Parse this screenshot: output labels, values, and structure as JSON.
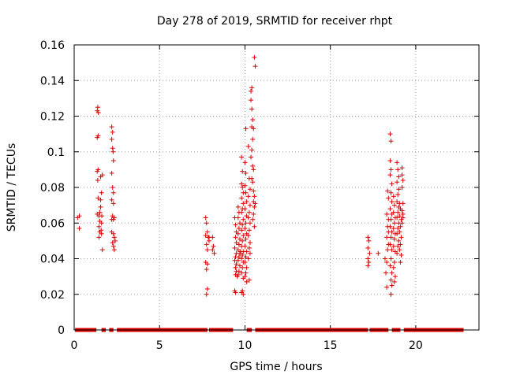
{
  "chart_data": {
    "type": "scatter",
    "title": "Day 278 of 2019, SRMTID for receiver rhpt",
    "xlabel": "GPS time / hours",
    "ylabel": "SRMTID / TECUs",
    "xlim": [
      0,
      23.7
    ],
    "ylim": [
      0,
      0.16
    ],
    "xticks": [
      0,
      5,
      10,
      15,
      20
    ],
    "xtick_labels": [
      "0",
      "5",
      "10",
      "15",
      "20"
    ],
    "yticks": [
      0,
      0.02,
      0.04,
      0.06,
      0.08,
      0.1,
      0.12,
      0.14,
      0.16
    ],
    "ytick_labels": [
      "0",
      "0.02",
      "0.04",
      "0.06",
      "0.08",
      "0.1",
      "0.12",
      "0.14",
      "0.16"
    ],
    "grid": true,
    "marker": "+",
    "color": "#dd0000",
    "series": [
      {
        "name": "SRMTID",
        "zero_segments": [
          [
            0.05,
            1.3
          ],
          [
            1.6,
            1.85
          ],
          [
            2.05,
            2.3
          ],
          [
            2.5,
            7.8
          ],
          [
            7.9,
            9.3
          ],
          [
            10.1,
            10.4
          ],
          [
            10.6,
            17.2
          ],
          [
            17.3,
            18.4
          ],
          [
            18.6,
            19.1
          ],
          [
            19.3,
            22.8
          ]
        ],
        "points": [
          [
            0.2,
            0.063
          ],
          [
            0.3,
            0.064
          ],
          [
            0.3,
            0.057
          ],
          [
            1.35,
            0.123
          ],
          [
            1.38,
            0.125
          ],
          [
            1.42,
            0.122
          ],
          [
            1.35,
            0.108
          ],
          [
            1.4,
            0.109
          ],
          [
            1.35,
            0.089
          ],
          [
            1.4,
            0.09
          ],
          [
            1.38,
            0.084
          ],
          [
            1.4,
            0.074
          ],
          [
            1.45,
            0.064
          ],
          [
            1.35,
            0.065
          ],
          [
            1.5,
            0.066
          ],
          [
            1.45,
            0.058
          ],
          [
            1.5,
            0.055
          ],
          [
            1.45,
            0.052
          ],
          [
            1.5,
            0.061
          ],
          [
            1.55,
            0.086
          ],
          [
            1.6,
            0.077
          ],
          [
            1.55,
            0.073
          ],
          [
            1.6,
            0.06
          ],
          [
            1.6,
            0.054
          ],
          [
            1.65,
            0.045
          ],
          [
            1.58,
            0.056
          ],
          [
            1.62,
            0.064
          ],
          [
            1.55,
            0.069
          ],
          [
            1.65,
            0.087
          ],
          [
            2.2,
            0.114
          ],
          [
            2.25,
            0.111
          ],
          [
            2.2,
            0.107
          ],
          [
            2.25,
            0.102
          ],
          [
            2.28,
            0.1
          ],
          [
            2.3,
            0.095
          ],
          [
            2.2,
            0.088
          ],
          [
            2.25,
            0.08
          ],
          [
            2.3,
            0.077
          ],
          [
            2.2,
            0.073
          ],
          [
            2.3,
            0.071
          ],
          [
            2.25,
            0.064
          ],
          [
            2.3,
            0.062
          ],
          [
            2.35,
            0.063
          ],
          [
            2.2,
            0.055
          ],
          [
            2.3,
            0.054
          ],
          [
            2.35,
            0.052
          ],
          [
            2.25,
            0.049
          ],
          [
            2.3,
            0.047
          ],
          [
            2.35,
            0.045
          ],
          [
            2.2,
            0.062
          ],
          [
            2.4,
            0.05
          ],
          [
            7.7,
            0.063
          ],
          [
            7.75,
            0.06
          ],
          [
            7.8,
            0.055
          ],
          [
            7.7,
            0.053
          ],
          [
            7.85,
            0.052
          ],
          [
            7.9,
            0.052
          ],
          [
            7.75,
            0.048
          ],
          [
            7.8,
            0.045
          ],
          [
            7.7,
            0.038
          ],
          [
            7.8,
            0.037
          ],
          [
            7.75,
            0.034
          ],
          [
            7.8,
            0.023
          ],
          [
            7.75,
            0.02
          ],
          [
            7.9,
            0.05
          ],
          [
            8.1,
            0.052
          ],
          [
            8.15,
            0.047
          ],
          [
            8.1,
            0.045
          ],
          [
            8.2,
            0.043
          ],
          [
            9.4,
            0.063
          ],
          [
            9.45,
            0.059
          ],
          [
            9.5,
            0.055
          ],
          [
            9.45,
            0.052
          ],
          [
            9.5,
            0.049
          ],
          [
            9.4,
            0.046
          ],
          [
            9.5,
            0.043
          ],
          [
            9.45,
            0.041
          ],
          [
            9.4,
            0.039
          ],
          [
            9.5,
            0.037
          ],
          [
            9.45,
            0.035
          ],
          [
            9.5,
            0.033
          ],
          [
            9.45,
            0.031
          ],
          [
            9.55,
            0.03
          ],
          [
            9.4,
            0.022
          ],
          [
            9.45,
            0.021
          ],
          [
            9.6,
            0.069
          ],
          [
            9.65,
            0.066
          ],
          [
            9.6,
            0.063
          ],
          [
            9.7,
            0.06
          ],
          [
            9.65,
            0.057
          ],
          [
            9.6,
            0.054
          ],
          [
            9.7,
            0.051
          ],
          [
            9.65,
            0.048
          ],
          [
            9.6,
            0.045
          ],
          [
            9.7,
            0.043
          ],
          [
            9.65,
            0.041
          ],
          [
            9.6,
            0.039
          ],
          [
            9.7,
            0.036
          ],
          [
            9.65,
            0.033
          ],
          [
            9.6,
            0.031
          ],
          [
            9.75,
            0.044
          ],
          [
            9.8,
            0.097
          ],
          [
            9.85,
            0.089
          ],
          [
            9.8,
            0.082
          ],
          [
            9.85,
            0.08
          ],
          [
            9.9,
            0.077
          ],
          [
            9.8,
            0.074
          ],
          [
            9.9,
            0.071
          ],
          [
            9.85,
            0.068
          ],
          [
            9.8,
            0.066
          ],
          [
            9.9,
            0.062
          ],
          [
            9.85,
            0.059
          ],
          [
            9.8,
            0.056
          ],
          [
            9.9,
            0.053
          ],
          [
            9.85,
            0.05
          ],
          [
            9.8,
            0.047
          ],
          [
            9.9,
            0.044
          ],
          [
            9.85,
            0.042
          ],
          [
            9.8,
            0.04
          ],
          [
            9.9,
            0.038
          ],
          [
            9.85,
            0.035
          ],
          [
            9.8,
            0.032
          ],
          [
            9.9,
            0.029
          ],
          [
            9.85,
            0.022
          ],
          [
            9.8,
            0.021
          ],
          [
            9.9,
            0.02
          ],
          [
            10.0,
            0.094
          ],
          [
            10.05,
            0.088
          ],
          [
            10.0,
            0.081
          ],
          [
            10.05,
            0.077
          ],
          [
            10.1,
            0.072
          ],
          [
            10.0,
            0.068
          ],
          [
            10.1,
            0.064
          ],
          [
            10.05,
            0.06
          ],
          [
            10.0,
            0.057
          ],
          [
            10.1,
            0.054
          ],
          [
            10.05,
            0.051
          ],
          [
            10.0,
            0.047
          ],
          [
            10.1,
            0.044
          ],
          [
            10.05,
            0.041
          ],
          [
            10.0,
            0.038
          ],
          [
            10.1,
            0.035
          ],
          [
            10.05,
            0.032
          ],
          [
            10.0,
            0.03
          ],
          [
            10.1,
            0.027
          ],
          [
            10.05,
            0.113
          ],
          [
            10.2,
            0.103
          ],
          [
            10.25,
            0.085
          ],
          [
            10.3,
            0.079
          ],
          [
            10.2,
            0.075
          ],
          [
            10.3,
            0.07
          ],
          [
            10.25,
            0.066
          ],
          [
            10.2,
            0.063
          ],
          [
            10.3,
            0.06
          ],
          [
            10.25,
            0.056
          ],
          [
            10.2,
            0.053
          ],
          [
            10.3,
            0.049
          ],
          [
            10.25,
            0.046
          ],
          [
            10.3,
            0.043
          ],
          [
            10.2,
            0.04
          ],
          [
            10.25,
            0.028
          ],
          [
            10.35,
            0.134
          ],
          [
            10.4,
            0.136
          ],
          [
            10.35,
            0.129
          ],
          [
            10.4,
            0.124
          ],
          [
            10.45,
            0.118
          ],
          [
            10.4,
            0.114
          ],
          [
            10.5,
            0.113
          ],
          [
            10.45,
            0.107
          ],
          [
            10.4,
            0.101
          ],
          [
            10.35,
            0.097
          ],
          [
            10.45,
            0.092
          ],
          [
            10.5,
            0.09
          ],
          [
            10.4,
            0.085
          ],
          [
            10.45,
            0.083
          ],
          [
            10.5,
            0.078
          ],
          [
            10.55,
            0.075
          ],
          [
            10.5,
            0.072
          ],
          [
            10.6,
            0.071
          ],
          [
            10.55,
            0.069
          ],
          [
            10.5,
            0.065
          ],
          [
            10.45,
            0.062
          ],
          [
            10.55,
            0.058
          ],
          [
            10.55,
            0.153
          ],
          [
            10.6,
            0.148
          ],
          [
            17.2,
            0.052
          ],
          [
            17.25,
            0.05
          ],
          [
            17.2,
            0.046
          ],
          [
            17.3,
            0.043
          ],
          [
            17.2,
            0.04
          ],
          [
            17.25,
            0.038
          ],
          [
            17.2,
            0.036
          ],
          [
            17.8,
            0.043
          ],
          [
            18.2,
            0.04
          ],
          [
            18.3,
            0.038
          ],
          [
            18.25,
            0.032
          ],
          [
            18.3,
            0.024
          ],
          [
            18.35,
            0.078
          ],
          [
            18.4,
            0.074
          ],
          [
            18.3,
            0.065
          ],
          [
            18.4,
            0.062
          ],
          [
            18.35,
            0.058
          ],
          [
            18.4,
            0.055
          ],
          [
            18.3,
            0.052
          ],
          [
            18.4,
            0.048
          ],
          [
            18.35,
            0.045
          ],
          [
            18.5,
            0.11
          ],
          [
            18.55,
            0.106
          ],
          [
            18.5,
            0.095
          ],
          [
            18.55,
            0.09
          ],
          [
            18.5,
            0.087
          ],
          [
            18.6,
            0.082
          ],
          [
            18.55,
            0.077
          ],
          [
            18.6,
            0.072
          ],
          [
            18.5,
            0.068
          ],
          [
            18.6,
            0.065
          ],
          [
            18.55,
            0.062
          ],
          [
            18.5,
            0.058
          ],
          [
            18.6,
            0.055
          ],
          [
            18.55,
            0.052
          ],
          [
            18.5,
            0.048
          ],
          [
            18.6,
            0.045
          ],
          [
            18.55,
            0.04
          ],
          [
            18.5,
            0.036
          ],
          [
            18.6,
            0.032
          ],
          [
            18.55,
            0.028
          ],
          [
            18.6,
            0.025
          ],
          [
            18.55,
            0.02
          ],
          [
            18.7,
            0.075
          ],
          [
            18.75,
            0.07
          ],
          [
            18.7,
            0.066
          ],
          [
            18.8,
            0.063
          ],
          [
            18.75,
            0.06
          ],
          [
            18.7,
            0.057
          ],
          [
            18.8,
            0.054
          ],
          [
            18.75,
            0.051
          ],
          [
            18.7,
            0.047
          ],
          [
            18.8,
            0.044
          ],
          [
            18.75,
            0.038
          ],
          [
            18.7,
            0.035
          ],
          [
            18.8,
            0.03
          ],
          [
            18.75,
            0.027
          ],
          [
            18.9,
            0.094
          ],
          [
            18.95,
            0.09
          ],
          [
            19.0,
            0.086
          ],
          [
            18.9,
            0.083
          ],
          [
            19.0,
            0.079
          ],
          [
            18.95,
            0.076
          ],
          [
            18.9,
            0.072
          ],
          [
            19.0,
            0.069
          ],
          [
            18.95,
            0.066
          ],
          [
            18.9,
            0.063
          ],
          [
            19.0,
            0.06
          ],
          [
            18.95,
            0.057
          ],
          [
            18.9,
            0.054
          ],
          [
            19.0,
            0.05
          ],
          [
            18.95,
            0.047
          ],
          [
            18.9,
            0.043
          ],
          [
            19.05,
            0.071
          ],
          [
            19.1,
            0.068
          ],
          [
            19.05,
            0.064
          ],
          [
            19.15,
            0.062
          ],
          [
            19.1,
            0.058
          ],
          [
            19.05,
            0.055
          ],
          [
            19.15,
            0.052
          ],
          [
            19.1,
            0.048
          ],
          [
            19.05,
            0.045
          ],
          [
            19.15,
            0.042
          ],
          [
            19.1,
            0.038
          ],
          [
            19.2,
            0.091
          ],
          [
            19.2,
            0.087
          ],
          [
            19.25,
            0.084
          ],
          [
            19.2,
            0.08
          ],
          [
            19.25,
            0.071
          ],
          [
            19.2,
            0.067
          ],
          [
            19.25,
            0.063
          ],
          [
            19.2,
            0.06
          ],
          [
            19.25,
            0.065
          ]
        ]
      }
    ]
  }
}
